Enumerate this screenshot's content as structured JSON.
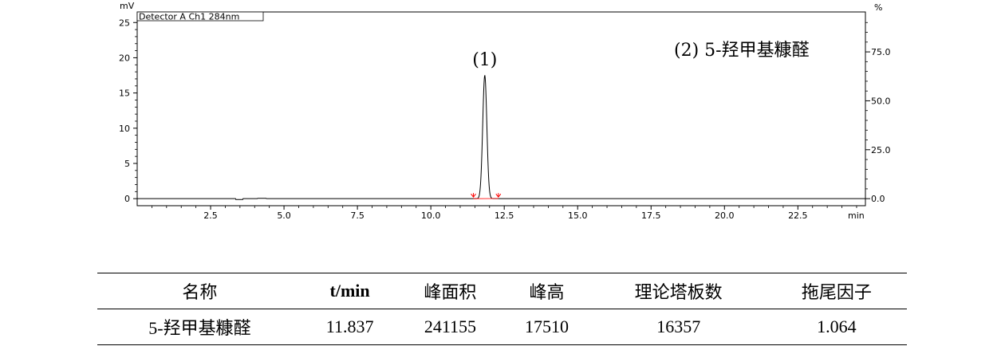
{
  "chart_data": {
    "type": "line",
    "detector_label": "Detector A Ch1 284nm",
    "y_unit_left": "mV",
    "y_unit_right": "%",
    "x_unit": "min",
    "xlim": [
      0,
      24.8
    ],
    "ylim_left": [
      -1,
      26.5
    ],
    "ylim_right": [
      -3.6,
      95.4
    ],
    "x_ticks": [
      2.5,
      5.0,
      7.5,
      10.0,
      12.5,
      15.0,
      17.5,
      20.0,
      22.5
    ],
    "x_tick_labels": [
      "2.5",
      "5.0",
      "7.5",
      "10.0",
      "12.5",
      "15.0",
      "17.5",
      "20.0",
      "22.5"
    ],
    "y_ticks_left": [
      0,
      5,
      10,
      15,
      20,
      25
    ],
    "y_tick_labels_left": [
      "0",
      "5",
      "10",
      "15",
      "20",
      "25"
    ],
    "y_ticks_right": [
      0,
      25,
      50,
      75
    ],
    "y_tick_labels_right": [
      "0.0",
      "25.0",
      "50.0",
      "75.0"
    ],
    "peak": {
      "label": "(1)",
      "rt": 11.837,
      "height_mv": 17.51,
      "sigma_min": 0.07,
      "start": 11.45,
      "end": 12.3
    },
    "annotation": "(2)  5-羟甲基糠醛",
    "series_color": "#000000",
    "integration_color": "#ff0000"
  },
  "table": {
    "headers": [
      "名称",
      "t/min",
      "峰面积",
      "峰高",
      "理论塔板数",
      "拖尾因子"
    ],
    "rows": [
      [
        "5-羟甲基糠醛",
        "11.837",
        "241155",
        "17510",
        "16357",
        "1.064"
      ]
    ]
  }
}
